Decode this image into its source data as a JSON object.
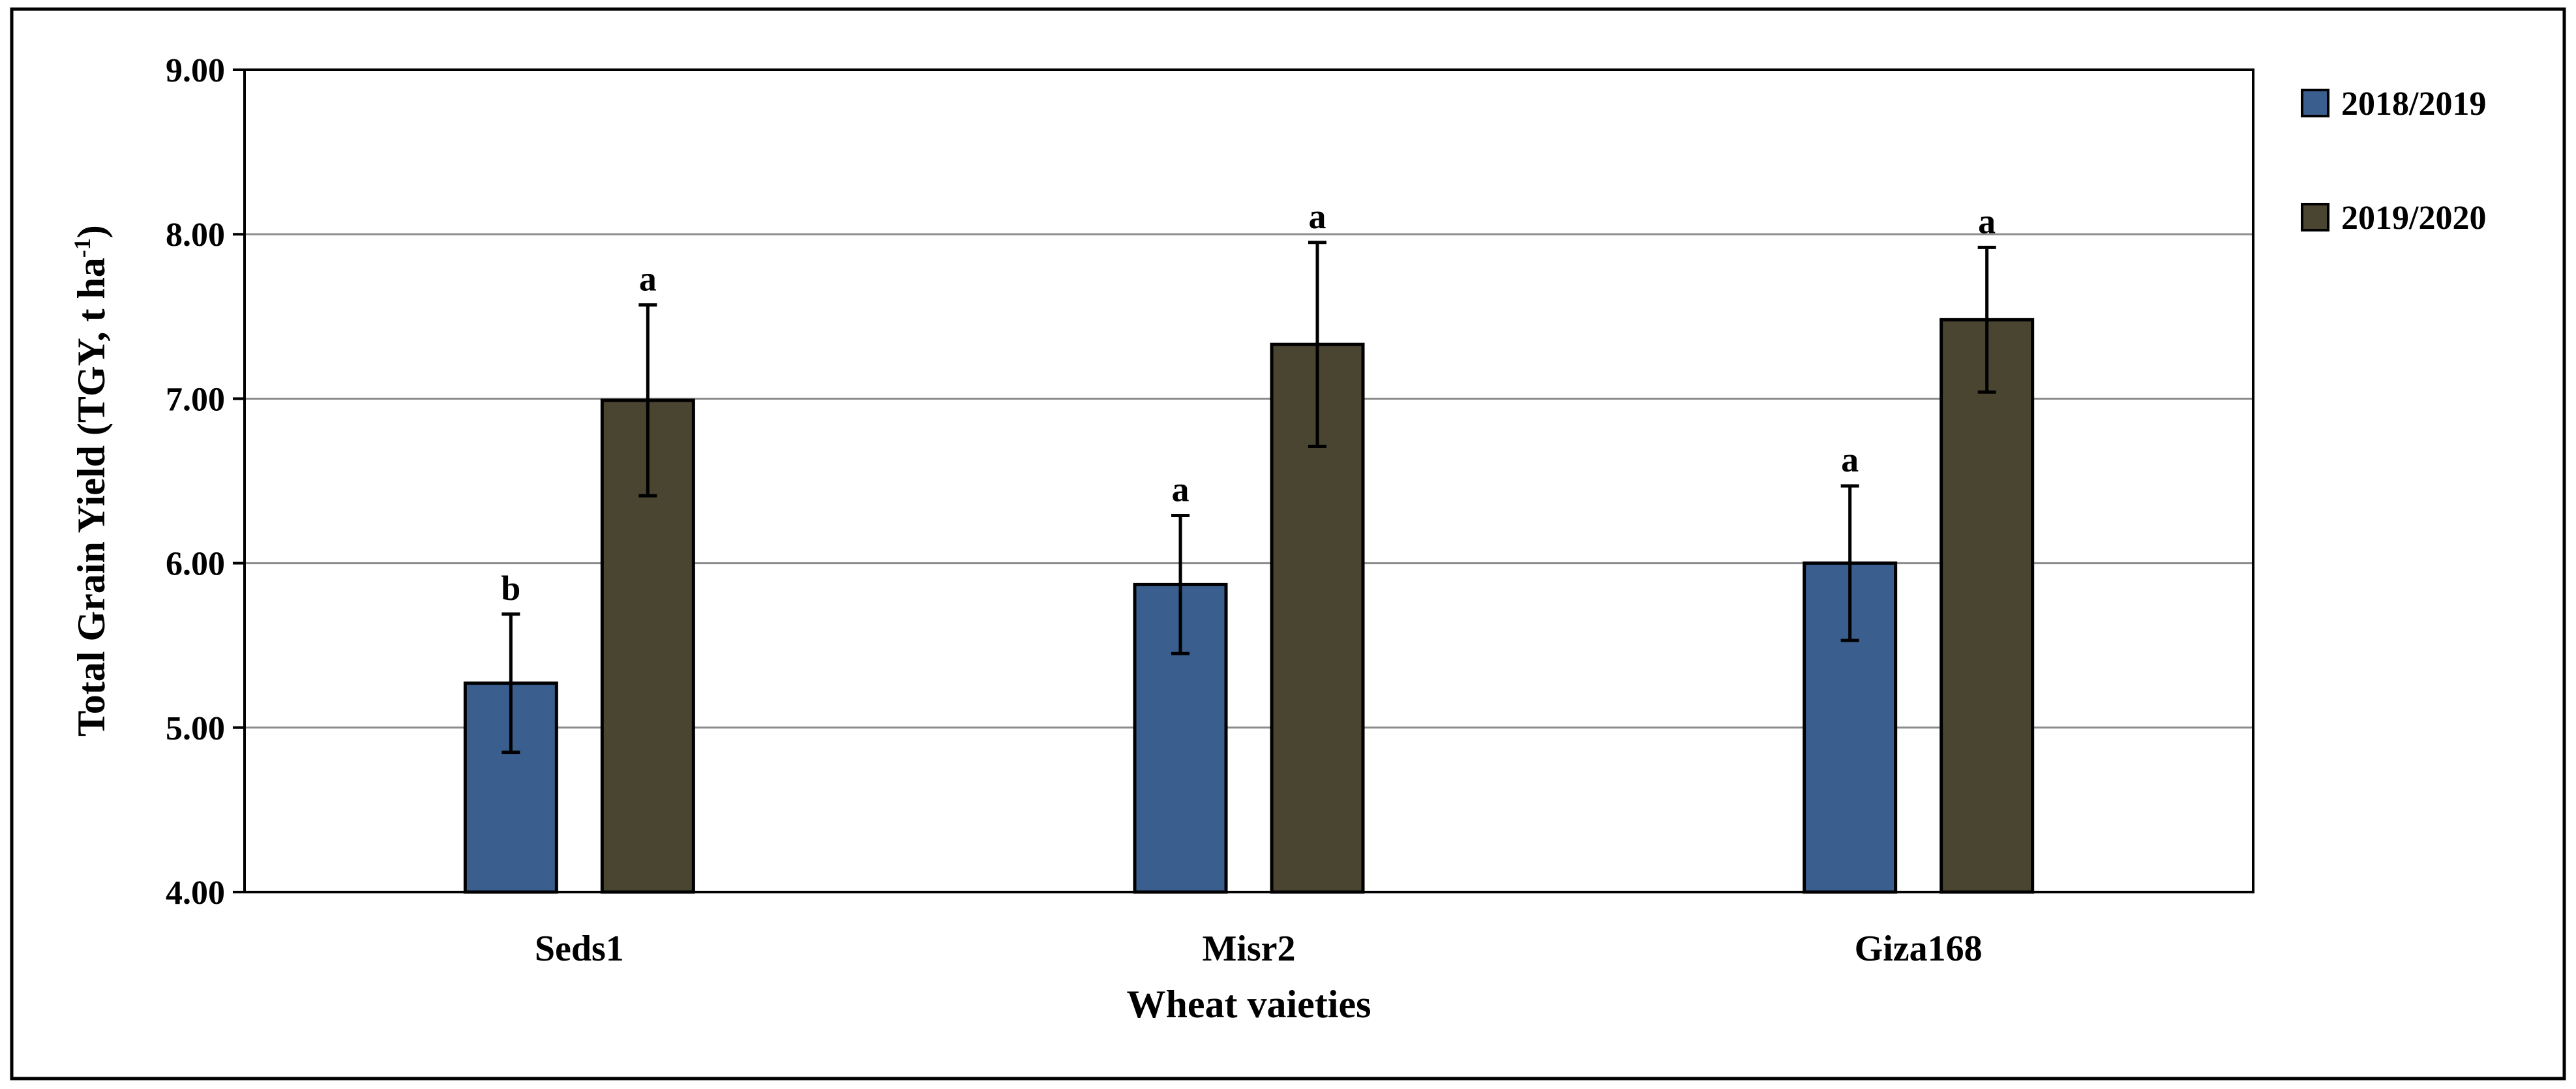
{
  "chart_data": {
    "type": "bar",
    "title": "",
    "xlabel": "Wheat vaieties",
    "ylabel_main": "Total Grain Yield (TGY, t ha",
    "ylabel_sup": "-1",
    "ylabel_end": ")",
    "categories": [
      "Seds1",
      "Misr2",
      "Giza168"
    ],
    "ylim": [
      4.0,
      9.0
    ],
    "yticks": [
      4.0,
      5.0,
      6.0,
      7.0,
      8.0,
      9.0
    ],
    "ytick_labels": [
      "4.00",
      "5.00",
      "6.00",
      "7.00",
      "8.00",
      "9.00"
    ],
    "grid": true,
    "legend_position": "right",
    "series": [
      {
        "name": "2018/2019",
        "color": "#3a5f8f",
        "values": [
          5.27,
          5.87,
          6.0
        ],
        "errors": [
          0.42,
          0.42,
          0.47
        ],
        "letters": [
          "b",
          "a",
          "a"
        ]
      },
      {
        "name": "2019/2020",
        "color": "#4a4530",
        "values": [
          6.99,
          7.33,
          7.48
        ],
        "errors": [
          0.58,
          0.62,
          0.44
        ],
        "letters": [
          "a",
          "a",
          "a"
        ]
      }
    ]
  }
}
